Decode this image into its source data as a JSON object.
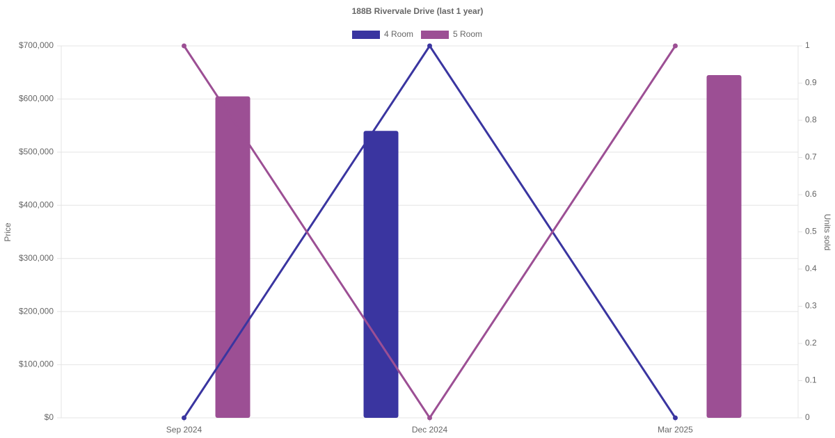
{
  "chart_data": {
    "type": "bar-line",
    "title": "188B Rivervale Drive (last 1 year)",
    "categories": [
      "Sep 2024",
      "Dec 2024",
      "Mar 2025"
    ],
    "series": [
      {
        "name": "4 Room",
        "color": "#3a35a0",
        "values": [
          null,
          540000,
          null
        ],
        "y2_values": [
          0,
          1,
          0
        ]
      },
      {
        "name": "5 Room",
        "color": "#9c4f94",
        "values": [
          605000,
          null,
          645000
        ],
        "y2_values": [
          1,
          0,
          1
        ]
      }
    ],
    "y_label": "Price",
    "y2_label": "Units sold",
    "ylim": [
      0,
      700000
    ],
    "yticks": [
      {
        "value": 0,
        "label": "$0"
      },
      {
        "value": 100000,
        "label": "$100,000"
      },
      {
        "value": 200000,
        "label": "$200,000"
      },
      {
        "value": 300000,
        "label": "$300,000"
      },
      {
        "value": 400000,
        "label": "$400,000"
      },
      {
        "value": 500000,
        "label": "$500,000"
      },
      {
        "value": 600000,
        "label": "$600,000"
      },
      {
        "value": 700000,
        "label": "$700,000"
      }
    ],
    "y2lim": [
      0,
      1
    ],
    "y2ticks": [
      0,
      0.1,
      0.2,
      0.3,
      0.4,
      0.5,
      0.6,
      0.7,
      0.8,
      0.9,
      1
    ],
    "grid": true
  }
}
